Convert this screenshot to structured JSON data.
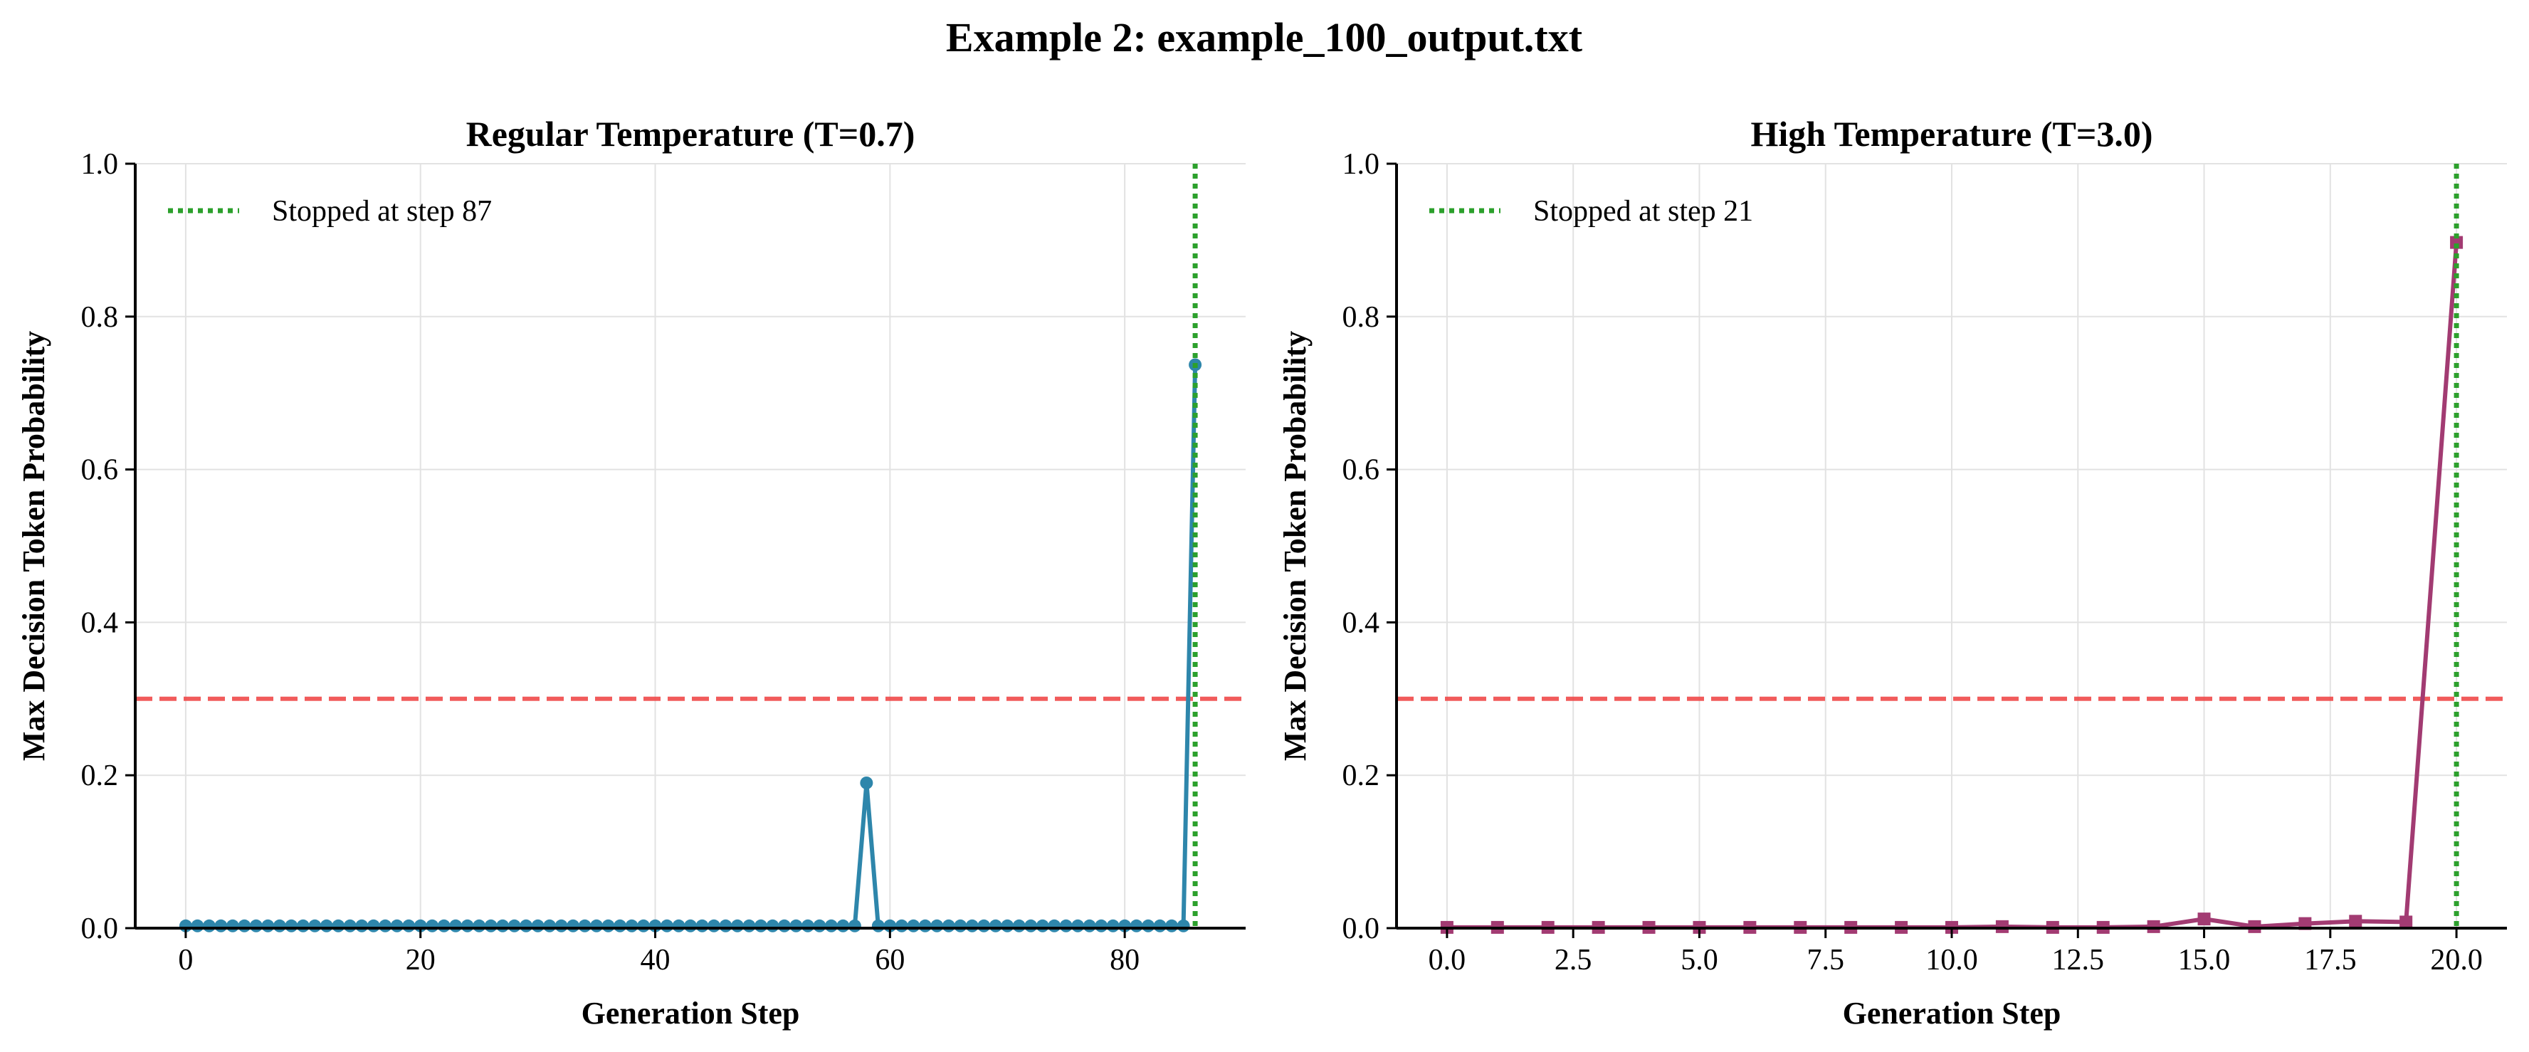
{
  "figure": {
    "title": "Example 2: example_100_output.txt"
  },
  "chart_data": [
    {
      "type": "line",
      "title": "Regular Temperature (T=0.7)",
      "xlabel": "Generation Step",
      "ylabel": "Max Decision Token Probability",
      "xlim": [
        -4.3,
        90.3
      ],
      "ylim": [
        0,
        1.0
      ],
      "xticks": [
        0,
        20,
        40,
        60,
        80
      ],
      "xtick_labels": [
        "0",
        "20",
        "40",
        "60",
        "80"
      ],
      "yticks": [
        0,
        0.2,
        0.4,
        0.6,
        0.8,
        1.0
      ],
      "ytick_labels": [
        "0.0",
        "0.2",
        "0.4",
        "0.6",
        "0.8",
        "1.0"
      ],
      "grid": true,
      "legend_position": "top-left",
      "series": [
        {
          "color": "#2e86ab",
          "marker": "circle",
          "steps": 87,
          "baseline": 0.003,
          "overrides": {
            "58": 0.19,
            "86": 0.737
          }
        }
      ],
      "threshold": {
        "y": 0.3,
        "color": "#f04a4a",
        "style": "dashed"
      },
      "stop_line": {
        "x": 86,
        "color": "#2ca02c",
        "style": "dotted",
        "label": "Stopped at step 87"
      }
    },
    {
      "type": "line",
      "title": "High Temperature (T=3.0)",
      "xlabel": "Generation Step",
      "ylabel": "Max Decision Token Probability",
      "xlim": [
        -1.0,
        21.0
      ],
      "ylim": [
        0,
        1.0
      ],
      "xticks": [
        0,
        2.5,
        5,
        7.5,
        10,
        12.5,
        15,
        17.5,
        20
      ],
      "xtick_labels": [
        "0.0",
        "2.5",
        "5.0",
        "7.5",
        "10.0",
        "12.5",
        "15.0",
        "17.5",
        "20.0"
      ],
      "yticks": [
        0,
        0.2,
        0.4,
        0.6,
        0.8,
        1.0
      ],
      "ytick_labels": [
        "0.0",
        "0.2",
        "0.4",
        "0.6",
        "0.8",
        "1.0"
      ],
      "grid": true,
      "legend_position": "top-left",
      "series": [
        {
          "color": "#a23b72",
          "marker": "square",
          "x": [
            0,
            1,
            2,
            3,
            4,
            5,
            6,
            7,
            8,
            9,
            10,
            11,
            12,
            13,
            14,
            15,
            16,
            17,
            18,
            19,
            20
          ],
          "y": [
            0.001,
            0.001,
            0.001,
            0.001,
            0.001,
            0.001,
            0.001,
            0.001,
            0.001,
            0.001,
            0.001,
            0.002,
            0.001,
            0.001,
            0.002,
            0.012,
            0.002,
            0.006,
            0.009,
            0.008,
            0.897
          ]
        }
      ],
      "threshold": {
        "y": 0.3,
        "color": "#f04a4a",
        "style": "dashed"
      },
      "stop_line": {
        "x": 20,
        "color": "#2ca02c",
        "style": "dotted",
        "label": "Stopped at step 21"
      }
    }
  ]
}
